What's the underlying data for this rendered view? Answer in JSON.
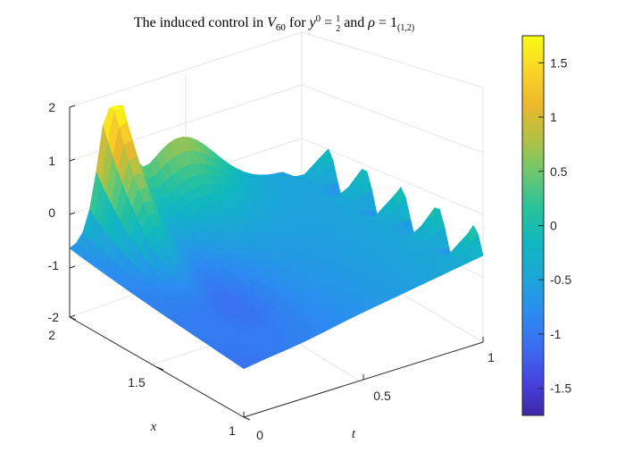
{
  "chart_data": {
    "type": "surface",
    "title": "The induced control in V60 for y0 = 1/2 and ρ = 1(1,2)",
    "title_parts": {
      "lead": "The induced control in ",
      "v": "V",
      "v_sub": "60",
      "for": " for ",
      "y": "y",
      "y_sup": "0",
      "eq1": " = ",
      "frac_num": "1",
      "frac_den": "2",
      "and": " and ",
      "rho": "ρ",
      "eq2": " = 1",
      "rho_sub": "(1,2)"
    },
    "xlabel": "t",
    "ylabel": "x",
    "zlabel": "",
    "t_range": [
      0,
      1
    ],
    "x_range": [
      1,
      2
    ],
    "z_range": [
      -2,
      2
    ],
    "t_ticks": [
      "0",
      "0.5",
      "1"
    ],
    "x_ticks": [
      "1",
      "1.5",
      "2"
    ],
    "z_ticks": [
      "-2",
      "-1",
      "0",
      "1",
      "2"
    ],
    "colorbar": {
      "range": [
        -1.75,
        1.75
      ],
      "ticks": [
        "1.5",
        "1",
        "0.5",
        "0",
        "-0.5",
        "-1",
        "-1.5"
      ],
      "colormap": "parula"
    },
    "surface_description_values": {
      "t_samples": [
        0,
        0.1,
        0.2,
        0.3,
        0.4,
        0.5,
        0.6,
        0.7,
        0.8,
        0.9,
        1.0
      ],
      "x_samples": [
        1,
        1.1,
        1.2,
        1.3,
        1.4,
        1.5,
        1.6,
        1.7,
        1.8,
        1.9,
        2.0
      ],
      "z": "approx: -0.9 at low t rising near x=1.5, spike to ~1.75 at x=2 t≈0.2, edge oscillations near t=1"
    },
    "grid": true
  },
  "colors": {
    "parula": [
      "#3e26a8",
      "#4743e0",
      "#3b6ef0",
      "#2b8df0",
      "#1ca6d8",
      "#10b7bf",
      "#29c29c",
      "#6ac770",
      "#b2c143",
      "#ecb82c",
      "#f9d528",
      "#f9fb15"
    ]
  }
}
